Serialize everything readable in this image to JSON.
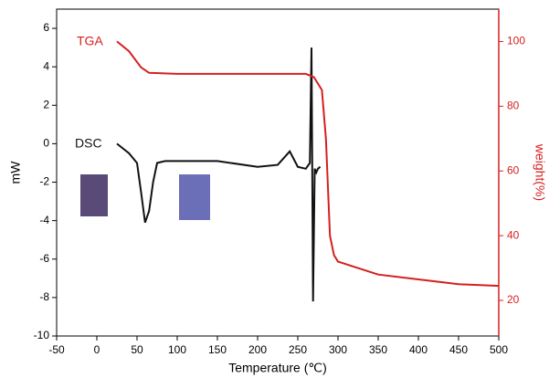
{
  "chart_data": {
    "type": "line",
    "xlabel": "Temperature (℃)",
    "ylabel": "mW",
    "y2label": "weight(%)",
    "xlim": [
      -50,
      500
    ],
    "xticks": [
      -50,
      0,
      50,
      100,
      150,
      200,
      250,
      300,
      350,
      400,
      450,
      500
    ],
    "ylim": [
      -10,
      7
    ],
    "yticks": [
      -10,
      -8,
      -6,
      -4,
      -2,
      0,
      2,
      4,
      6
    ],
    "y2lim": [
      9,
      110
    ],
    "y2ticks": [
      20,
      40,
      60,
      80,
      100
    ],
    "series": [
      {
        "name": "DSC",
        "color": "#111111",
        "x": [
          25,
          40,
          50,
          55,
          60,
          65,
          70,
          75,
          85,
          100,
          150,
          200,
          225,
          240,
          250,
          260,
          265,
          267,
          269,
          271,
          273,
          275,
          278
        ],
        "values": [
          0,
          -0.5,
          -1,
          -2.5,
          -4.1,
          -3.5,
          -2,
          -1,
          -0.9,
          -0.9,
          -0.9,
          -1.2,
          -1.1,
          -0.4,
          -1.2,
          -1.3,
          -1.0,
          5,
          -8.2,
          -1.3,
          -1.5,
          -1.3,
          -1.2
        ]
      },
      {
        "name": "TGA",
        "color": "#d42020",
        "axis": "y2",
        "x": [
          25,
          40,
          55,
          65,
          100,
          150,
          200,
          260,
          270,
          280,
          285,
          290,
          295,
          300,
          350,
          400,
          450,
          500
        ],
        "values": [
          100,
          97,
          92,
          90.3,
          90,
          90,
          90,
          90,
          89,
          85,
          70,
          40,
          34,
          32,
          28,
          26.5,
          25,
          24.5
        ]
      }
    ]
  }
}
